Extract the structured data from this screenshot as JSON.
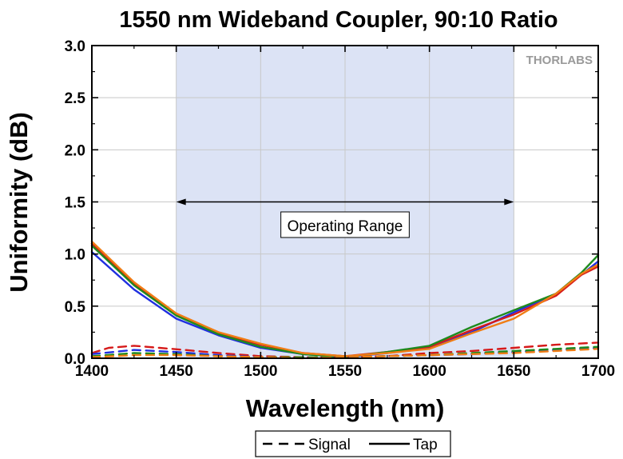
{
  "chart_data": {
    "type": "line",
    "title": "1550 nm Wideband Coupler, 90:10 Ratio",
    "xlabel": "Wavelength (nm)",
    "ylabel": "Uniformity (dB)",
    "xlim": [
      1400,
      1700
    ],
    "ylim": [
      0,
      3.0
    ],
    "xticks": [
      "1400",
      "1450",
      "1500",
      "1550",
      "1600",
      "1650",
      "1700"
    ],
    "yticks": [
      "0.0",
      "0.5",
      "1.0",
      "1.5",
      "2.0",
      "2.5",
      "3.0"
    ],
    "grid": true,
    "legend_position": "bottom",
    "legend": [
      {
        "label": "Signal",
        "style": "dashed"
      },
      {
        "label": "Tap",
        "style": "solid"
      }
    ],
    "annotation": {
      "text": "Operating Range",
      "x_range": [
        1450,
        1650
      ],
      "shaded": true,
      "color": "#dce3f5"
    },
    "watermark": "THORLABS",
    "series": [
      {
        "style": "solid",
        "color": "#1f2fe0",
        "x": [
          1400,
          1425,
          1450,
          1475,
          1500,
          1525,
          1550,
          1575,
          1600,
          1625,
          1650,
          1675,
          1690,
          1700
        ],
        "y": [
          1.02,
          0.66,
          0.38,
          0.22,
          0.1,
          0.04,
          0.01,
          0.05,
          0.1,
          0.25,
          0.44,
          0.62,
          0.8,
          0.93
        ]
      },
      {
        "style": "solid",
        "color": "#d61a1a",
        "x": [
          1400,
          1425,
          1450,
          1475,
          1500,
          1525,
          1550,
          1575,
          1600,
          1625,
          1650,
          1675,
          1690,
          1700
        ],
        "y": [
          1.1,
          0.72,
          0.42,
          0.24,
          0.13,
          0.05,
          0.02,
          0.06,
          0.11,
          0.27,
          0.42,
          0.6,
          0.8,
          0.88
        ]
      },
      {
        "style": "solid",
        "color": "#1e8a1e",
        "x": [
          1400,
          1425,
          1450,
          1475,
          1500,
          1525,
          1550,
          1575,
          1600,
          1625,
          1650,
          1675,
          1690,
          1700
        ],
        "y": [
          1.08,
          0.7,
          0.41,
          0.23,
          0.11,
          0.04,
          0.01,
          0.06,
          0.12,
          0.3,
          0.46,
          0.62,
          0.82,
          0.99
        ]
      },
      {
        "style": "solid",
        "color": "#f07d14",
        "x": [
          1400,
          1425,
          1450,
          1475,
          1500,
          1525,
          1550,
          1575,
          1600,
          1625,
          1650,
          1675,
          1690,
          1700
        ],
        "y": [
          1.12,
          0.73,
          0.43,
          0.25,
          0.14,
          0.05,
          0.02,
          0.05,
          0.09,
          0.24,
          0.38,
          0.62,
          0.81,
          0.9
        ]
      },
      {
        "style": "dashed",
        "color": "#d61a1a",
        "x": [
          1400,
          1410,
          1425,
          1440,
          1455,
          1475,
          1500,
          1525,
          1550,
          1575,
          1600,
          1625,
          1650,
          1675,
          1700
        ],
        "y": [
          0.05,
          0.1,
          0.12,
          0.1,
          0.08,
          0.05,
          0.02,
          0.01,
          0.01,
          0.02,
          0.05,
          0.07,
          0.1,
          0.13,
          0.15
        ]
      },
      {
        "style": "dashed",
        "color": "#1f2fe0",
        "x": [
          1400,
          1425,
          1450,
          1475,
          1500,
          1525,
          1550,
          1575,
          1600,
          1625,
          1650,
          1675,
          1700
        ],
        "y": [
          0.04,
          0.08,
          0.06,
          0.03,
          0.01,
          0.01,
          0.01,
          0.02,
          0.03,
          0.04,
          0.06,
          0.08,
          0.1
        ]
      },
      {
        "style": "dashed",
        "color": "#1e8a1e",
        "x": [
          1400,
          1425,
          1450,
          1475,
          1500,
          1525,
          1550,
          1575,
          1600,
          1625,
          1650,
          1675,
          1700
        ],
        "y": [
          0.02,
          0.05,
          0.04,
          0.02,
          0.01,
          0.01,
          0.01,
          0.02,
          0.03,
          0.05,
          0.07,
          0.09,
          0.11
        ]
      },
      {
        "style": "dashed",
        "color": "#f07d14",
        "x": [
          1400,
          1425,
          1450,
          1475,
          1500,
          1525,
          1550,
          1575,
          1600,
          1625,
          1650,
          1675,
          1700
        ],
        "y": [
          0.01,
          0.03,
          0.03,
          0.02,
          0.01,
          0.0,
          0.01,
          0.02,
          0.03,
          0.04,
          0.05,
          0.07,
          0.09
        ]
      }
    ]
  }
}
